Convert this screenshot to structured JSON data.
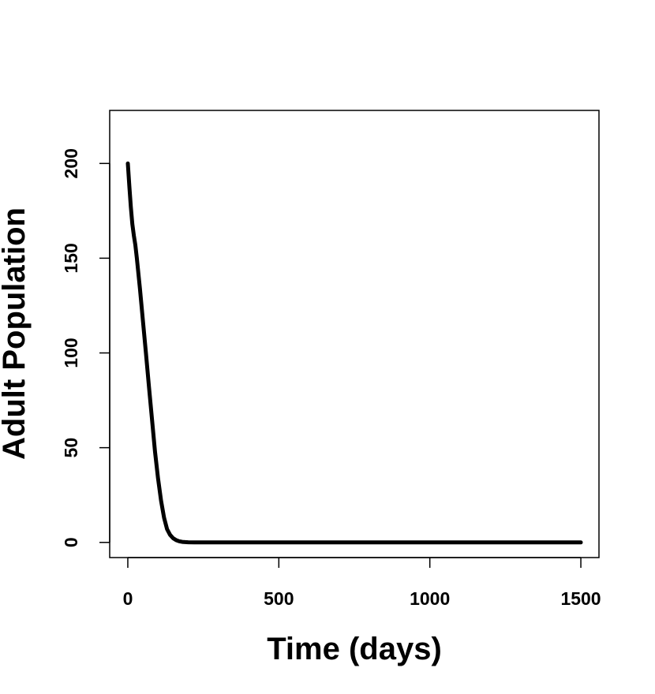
{
  "chart_data": {
    "type": "line",
    "title": "",
    "xlabel": "Time (days)",
    "ylabel": "Adult Population",
    "xlim": [
      -60,
      1560
    ],
    "ylim": [
      -8,
      228
    ],
    "xticks": [
      0,
      500,
      1000,
      1500
    ],
    "yticks": [
      0,
      50,
      100,
      150,
      200
    ],
    "x_tick_labels": [
      "0",
      "500",
      "1000",
      "1500"
    ],
    "y_tick_labels": [
      "0",
      "50",
      "100",
      "150",
      "200"
    ],
    "grid": false,
    "legend": "none",
    "series": [
      {
        "color": "#000000",
        "x": [
          0,
          5,
          10,
          15,
          20,
          25,
          30,
          40,
          50,
          60,
          70,
          80,
          90,
          100,
          110,
          120,
          130,
          140,
          150,
          160,
          170,
          180,
          190,
          200,
          220,
          250,
          300,
          400,
          500,
          700,
          1000,
          1300,
          1500
        ],
        "y": [
          200,
          188,
          177,
          168,
          162,
          157,
          150,
          134,
          117,
          100,
          82,
          65,
          48,
          34,
          22,
          13,
          7,
          4,
          2.2,
          1.2,
          0.6,
          0.3,
          0.15,
          0.08,
          0.03,
          0.01,
          0,
          0,
          0,
          0,
          0,
          0,
          0
        ]
      }
    ]
  }
}
